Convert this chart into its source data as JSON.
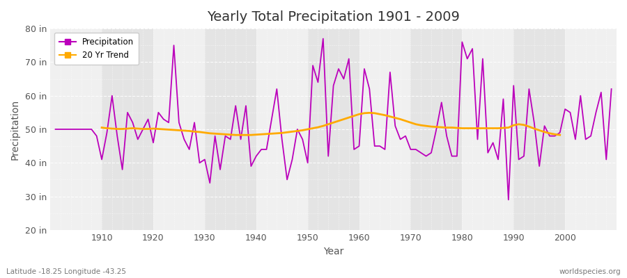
{
  "title": "Yearly Total Precipitation 1901 - 2009",
  "xlabel": "Year",
  "ylabel": "Precipitation",
  "subtitle": "Latitude -18.25 Longitude -43.25",
  "watermark": "worldspecies.org",
  "fig_bg_color": "#ffffff",
  "plot_bg_color": "#f0f0f0",
  "stripe_color_light": "#f0f0f0",
  "stripe_color_dark": "#e4e4e4",
  "precip_color": "#bb00bb",
  "trend_color": "#ffaa00",
  "ylim": [
    20,
    80
  ],
  "yticks": [
    20,
    30,
    40,
    50,
    60,
    70,
    80
  ],
  "ytick_labels": [
    "20 in",
    "30 in",
    "40 in",
    "50 in",
    "60 in",
    "70 in",
    "80 in"
  ],
  "years": [
    1901,
    1902,
    1903,
    1904,
    1905,
    1906,
    1907,
    1908,
    1909,
    1910,
    1911,
    1912,
    1913,
    1914,
    1915,
    1916,
    1917,
    1918,
    1919,
    1920,
    1921,
    1922,
    1923,
    1924,
    1925,
    1926,
    1927,
    1928,
    1929,
    1930,
    1931,
    1932,
    1933,
    1934,
    1935,
    1936,
    1937,
    1938,
    1939,
    1940,
    1941,
    1942,
    1943,
    1944,
    1945,
    1946,
    1947,
    1948,
    1949,
    1950,
    1951,
    1952,
    1953,
    1954,
    1955,
    1956,
    1957,
    1958,
    1959,
    1960,
    1961,
    1962,
    1963,
    1964,
    1965,
    1966,
    1967,
    1968,
    1969,
    1970,
    1971,
    1972,
    1973,
    1974,
    1975,
    1976,
    1977,
    1978,
    1979,
    1980,
    1981,
    1982,
    1983,
    1984,
    1985,
    1986,
    1987,
    1988,
    1989,
    1990,
    1991,
    1992,
    1993,
    1994,
    1995,
    1996,
    1997,
    1998,
    1999,
    2000,
    2001,
    2002,
    2003,
    2004,
    2005,
    2006,
    2007,
    2008,
    2009
  ],
  "precip": [
    50.0,
    50.0,
    50.0,
    50.0,
    50.0,
    50.0,
    50.0,
    50.0,
    48.0,
    41.0,
    49.0,
    60.0,
    48.0,
    38.0,
    55.0,
    52.0,
    47.0,
    50.0,
    53.0,
    46.0,
    55.0,
    53.0,
    52.0,
    75.0,
    52.0,
    47.0,
    44.0,
    52.0,
    40.0,
    41.0,
    34.0,
    48.0,
    38.0,
    48.0,
    47.0,
    57.0,
    47.0,
    57.0,
    39.0,
    42.0,
    44.0,
    44.0,
    53.0,
    62.0,
    47.0,
    35.0,
    41.0,
    50.0,
    47.0,
    40.0,
    69.0,
    64.0,
    77.0,
    42.0,
    63.0,
    68.0,
    65.0,
    71.0,
    44.0,
    45.0,
    68.0,
    62.0,
    45.0,
    45.0,
    44.0,
    67.0,
    51.0,
    47.0,
    48.0,
    44.0,
    44.0,
    43.0,
    42.0,
    43.0,
    50.0,
    58.0,
    48.0,
    42.0,
    42.0,
    76.0,
    71.0,
    74.0,
    47.0,
    71.0,
    43.0,
    46.0,
    41.0,
    59.0,
    29.0,
    63.0,
    41.0,
    42.0,
    62.0,
    52.0,
    39.0,
    51.0,
    48.0,
    48.0,
    49.0,
    56.0,
    55.0,
    47.0,
    60.0,
    47.0,
    48.0,
    55.0,
    61.0,
    41.0,
    62.0
  ],
  "trend_years": [
    1910,
    1911,
    1912,
    1913,
    1914,
    1915,
    1916,
    1917,
    1918,
    1919,
    1920,
    1921,
    1922,
    1923,
    1924,
    1925,
    1926,
    1927,
    1928,
    1929,
    1930,
    1931,
    1932,
    1933,
    1934,
    1935,
    1936,
    1937,
    1938,
    1939,
    1940,
    1941,
    1942,
    1943,
    1944,
    1945,
    1946,
    1947,
    1948,
    1949,
    1950,
    1951,
    1952,
    1953,
    1954,
    1955,
    1956,
    1957,
    1958,
    1959,
    1960,
    1961,
    1962,
    1963,
    1964,
    1965,
    1966,
    1967,
    1968,
    1969,
    1970,
    1971,
    1972,
    1973,
    1974,
    1975,
    1976,
    1977,
    1978,
    1979,
    1980,
    1981,
    1982,
    1983,
    1984,
    1985,
    1986,
    1987,
    1988,
    1989,
    1990,
    1991,
    1992,
    1993,
    1994,
    1995,
    1996,
    1997,
    1998,
    1999
  ],
  "trend": [
    50.5,
    50.3,
    50.2,
    50.1,
    50.1,
    50.2,
    50.3,
    50.2,
    50.1,
    50.1,
    50.2,
    50.1,
    50.0,
    49.9,
    49.8,
    49.7,
    49.6,
    49.5,
    49.3,
    49.2,
    49.0,
    48.8,
    48.7,
    48.6,
    48.5,
    48.4,
    48.3,
    48.3,
    48.3,
    48.3,
    48.4,
    48.5,
    48.6,
    48.7,
    48.8,
    48.9,
    49.1,
    49.3,
    49.5,
    49.7,
    50.0,
    50.3,
    50.6,
    51.0,
    51.5,
    52.0,
    52.5,
    53.0,
    53.5,
    54.0,
    54.5,
    54.8,
    54.9,
    54.8,
    54.5,
    54.2,
    53.8,
    53.4,
    53.0,
    52.5,
    52.0,
    51.5,
    51.2,
    51.0,
    50.8,
    50.7,
    50.6,
    50.5,
    50.5,
    50.4,
    50.3,
    50.3,
    50.3,
    50.3,
    50.3,
    50.3,
    50.3,
    50.3,
    50.4,
    50.5,
    51.2,
    51.5,
    51.3,
    50.8,
    50.2,
    49.7,
    49.2,
    48.8,
    48.5,
    48.3
  ]
}
